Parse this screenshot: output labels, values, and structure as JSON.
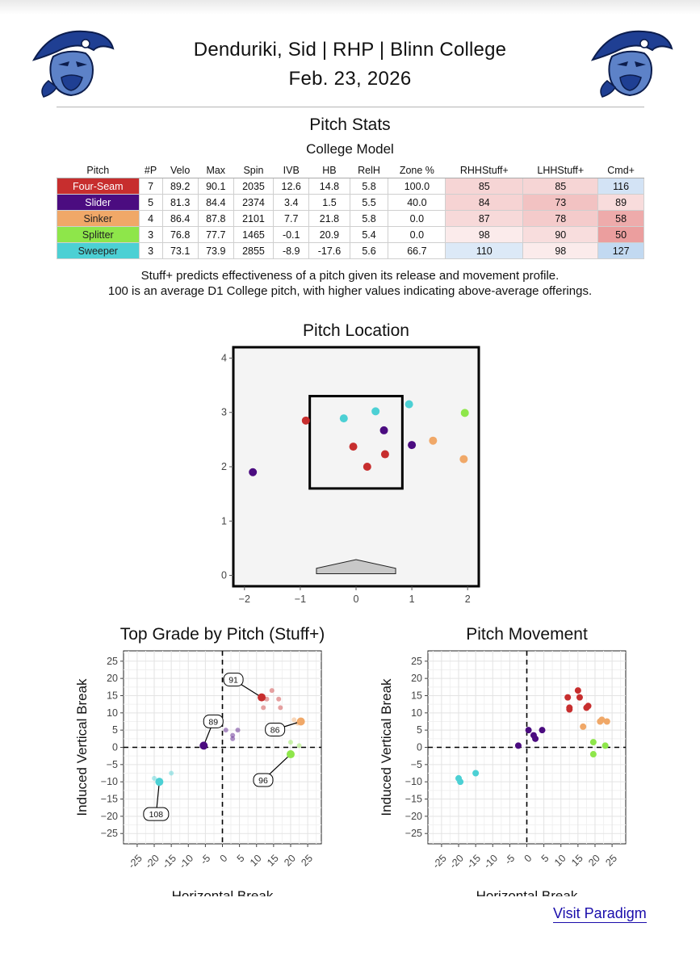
{
  "header": {
    "title": "Denduriki, Sid | RHP | Blinn College",
    "date": "Feb. 23, 2026"
  },
  "colors": {
    "Four-Seam": "#c72e2e",
    "Slider": "#4b0c80",
    "Sinker": "#f0a868",
    "Splitter": "#8ee64a",
    "Sweeper": "#4cd0d4"
  },
  "stats": {
    "title": "Pitch Stats",
    "subtitle": "College Model",
    "columns": [
      "Pitch",
      "#P",
      "Velo",
      "Max",
      "Spin",
      "IVB",
      "HB",
      "RelH",
      "Zone %",
      "RHHStuff+",
      "LHHStuff+",
      "Cmd+"
    ],
    "rows": [
      [
        "Four-Seam",
        "7",
        "89.2",
        "90.1",
        "2035",
        "12.6",
        "14.8",
        "5.8",
        "100.0",
        "85",
        "85",
        "116"
      ],
      [
        "Slider",
        "5",
        "81.3",
        "84.4",
        "2374",
        "3.4",
        "1.5",
        "5.5",
        "40.0",
        "84",
        "73",
        "89"
      ],
      [
        "Sinker",
        "4",
        "86.4",
        "87.8",
        "2101",
        "7.7",
        "21.8",
        "5.8",
        "0.0",
        "87",
        "78",
        "58"
      ],
      [
        "Splitter",
        "3",
        "76.8",
        "77.7",
        "1465",
        "-0.1",
        "20.9",
        "5.4",
        "0.0",
        "98",
        "90",
        "50"
      ],
      [
        "Sweeper",
        "3",
        "73.1",
        "73.9",
        "2855",
        "-8.9",
        "-17.6",
        "5.6",
        "66.7",
        "110",
        "98",
        "127"
      ]
    ]
  },
  "note": {
    "line1": "Stuff+ predicts effectiveness of a pitch given its release and movement profile.",
    "line2": "100 is an average D1 College pitch, with higher values indicating above-average offerings."
  },
  "chart_data": [
    {
      "type": "scatter",
      "title": "Pitch Location",
      "xlabel": "",
      "ylabel": "",
      "xlim": [
        -2.2,
        2.2
      ],
      "ylim": [
        -0.2,
        4.2
      ],
      "xticks": [
        "-2",
        "-1",
        "0",
        "1",
        "2"
      ],
      "yticks": [
        "0",
        "1",
        "2",
        "3",
        "4"
      ],
      "strike_zone": {
        "x": [
          -0.83,
          0.83
        ],
        "y": [
          1.6,
          3.3
        ]
      },
      "series": [
        {
          "name": "Four-Seam",
          "points": [
            [
              -0.9,
              2.85
            ],
            [
              -0.05,
              2.37
            ],
            [
              0.2,
              2.0
            ],
            [
              0.52,
              2.23
            ]
          ]
        },
        {
          "name": "Slider",
          "points": [
            [
              -1.85,
              1.9
            ],
            [
              0.5,
              2.67
            ],
            [
              1.0,
              2.4
            ]
          ]
        },
        {
          "name": "Sinker",
          "points": [
            [
              1.38,
              2.48
            ],
            [
              1.93,
              2.14
            ]
          ]
        },
        {
          "name": "Splitter",
          "points": [
            [
              1.95,
              2.99
            ]
          ]
        },
        {
          "name": "Sweeper",
          "points": [
            [
              -0.22,
              2.89
            ],
            [
              0.35,
              3.02
            ],
            [
              0.95,
              3.15
            ]
          ]
        }
      ]
    },
    {
      "type": "scatter",
      "title": "Top Grade by Pitch (Stuff+)",
      "xlabel": "Horizontal Break",
      "ylabel": "Induced Vertical Break",
      "xlim": [
        -29,
        29
      ],
      "ylim": [
        -28,
        28
      ],
      "xticks": [
        "-25",
        "-20",
        "-15",
        "-10",
        "-5",
        "0",
        "5",
        "10",
        "15",
        "20",
        "25"
      ],
      "yticks": [
        "-25",
        "-20",
        "-15",
        "-10",
        "-5",
        "0",
        "5",
        "10",
        "15",
        "20",
        "25"
      ],
      "series": [
        {
          "name": "Four-Seam",
          "points": [
            [
              14.5,
              16.5
            ],
            [
              13,
              14
            ],
            [
              12,
              11.5
            ],
            [
              16.5,
              14
            ],
            [
              17,
              11.5
            ]
          ]
        },
        {
          "name": "Slider",
          "points": [
            [
              1,
              5
            ],
            [
              3,
              3.5
            ],
            [
              4.5,
              5
            ],
            [
              3,
              2.5
            ]
          ]
        },
        {
          "name": "Sinker",
          "points": [
            [
              21,
              8
            ],
            [
              16.5,
              6.5
            ],
            [
              22,
              7
            ]
          ]
        },
        {
          "name": "Splitter",
          "points": [
            [
              20,
              1.5
            ],
            [
              22.5,
              0.5
            ]
          ]
        },
        {
          "name": "Sweeper",
          "points": [
            [
              -20,
              -9
            ],
            [
              -15,
              -7.5
            ]
          ]
        }
      ],
      "top_grades": [
        {
          "pitch": "Four-Seam",
          "x": 11.5,
          "y": 14.5,
          "label": "91"
        },
        {
          "pitch": "Slider",
          "x": -5.5,
          "y": 0.5,
          "label": "89"
        },
        {
          "pitch": "Sinker",
          "x": 23,
          "y": 7.5,
          "label": "86"
        },
        {
          "pitch": "Splitter",
          "x": 20,
          "y": -2,
          "label": "96"
        },
        {
          "pitch": "Sweeper",
          "x": -18.5,
          "y": -10,
          "label": "108"
        }
      ]
    },
    {
      "type": "scatter",
      "title": "Pitch Movement",
      "xlabel": "Horizontal Break",
      "ylabel": "Induced Vertical Break",
      "xlim": [
        -29,
        29
      ],
      "ylim": [
        -28,
        28
      ],
      "xticks": [
        "-25",
        "-20",
        "-15",
        "-10",
        "-5",
        "0",
        "5",
        "10",
        "15",
        "20",
        "25"
      ],
      "yticks": [
        "-25",
        "-20",
        "-15",
        "-10",
        "-5",
        "0",
        "5",
        "10",
        "15",
        "20",
        "25"
      ],
      "series": [
        {
          "name": "Four-Seam",
          "points": [
            [
              12,
              14.5
            ],
            [
              12.5,
              11.5
            ],
            [
              12.5,
              11
            ],
            [
              15,
              16.5
            ],
            [
              17.5,
              11.5
            ],
            [
              18,
              12
            ],
            [
              15.5,
              14.5
            ]
          ]
        },
        {
          "name": "Slider",
          "points": [
            [
              -2.5,
              0.5
            ],
            [
              0.5,
              5
            ],
            [
              2,
              3.5
            ],
            [
              2.5,
              2.5
            ],
            [
              4.5,
              5
            ]
          ]
        },
        {
          "name": "Sinker",
          "points": [
            [
              16.5,
              6
            ],
            [
              21.5,
              7.5
            ],
            [
              23.5,
              7.5
            ],
            [
              22,
              8
            ]
          ]
        },
        {
          "name": "Splitter",
          "points": [
            [
              19.5,
              1.5
            ],
            [
              19.5,
              -2
            ],
            [
              23,
              0.5
            ]
          ]
        },
        {
          "name": "Sweeper",
          "points": [
            [
              -20,
              -9
            ],
            [
              -19.5,
              -10
            ],
            [
              -15,
              -7.5
            ]
          ]
        }
      ]
    }
  ],
  "footer": {
    "link_label": "Visit Paradigm"
  }
}
